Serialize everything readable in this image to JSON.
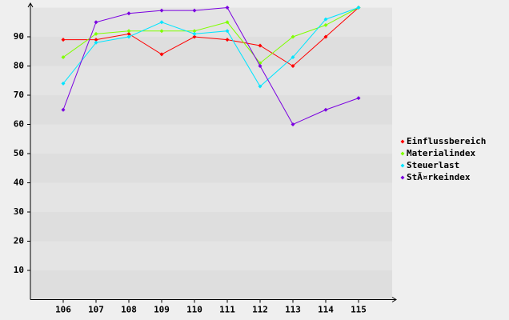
{
  "chart_data": {
    "type": "line",
    "categories": [
      "106",
      "107",
      "108",
      "109",
      "110",
      "111",
      "112",
      "113",
      "114",
      "115"
    ],
    "series": [
      {
        "name": "Einflussbereich",
        "color": "#ff0000",
        "values": [
          89,
          89,
          91,
          84,
          90,
          89,
          87,
          80,
          90,
          100
        ]
      },
      {
        "name": "Materialindex",
        "color": "#80ff00",
        "values": [
          83,
          91,
          92,
          92,
          92,
          95,
          81,
          90,
          94,
          100
        ]
      },
      {
        "name": "Steuerlast",
        "color": "#00e5ff",
        "values": [
          74,
          88,
          90,
          95,
          91,
          92,
          73,
          83,
          96,
          100
        ]
      },
      {
        "name": "StÃ¤rkeindex",
        "color": "#7a00e0",
        "values": [
          65,
          95,
          98,
          99,
          99,
          100,
          80,
          60,
          65,
          69
        ]
      }
    ],
    "ylim": [
      0,
      100
    ],
    "yticks": [
      10,
      20,
      30,
      40,
      50,
      60,
      70,
      80,
      90
    ],
    "grid": true,
    "legend": "right"
  }
}
